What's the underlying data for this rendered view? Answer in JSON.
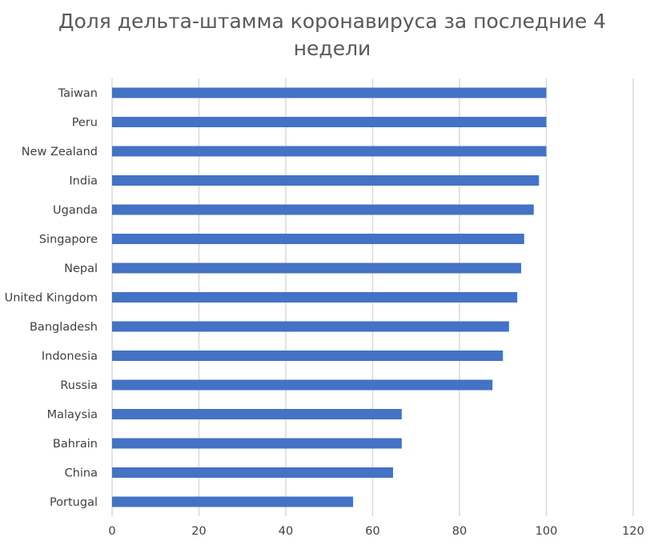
{
  "chart_data": {
    "type": "bar",
    "orientation": "horizontal",
    "title": "Доля дельта-штамма коронавируса за последние 4 недели",
    "xlabel": "",
    "ylabel": "",
    "categories": [
      "Taiwan",
      "Peru",
      "New Zealand",
      "India",
      "Uganda",
      "Singapore",
      "Nepal",
      "United Kingdom",
      "Bangladesh",
      "Indonesia",
      "Russia",
      "Malaysia",
      "Bahrain",
      "China",
      "Portugal"
    ],
    "values": [
      100,
      100,
      100,
      98.3,
      97.1,
      94.9,
      94.2,
      93.3,
      91.4,
      90.0,
      87.6,
      66.7,
      66.7,
      64.7,
      55.5
    ],
    "xlim": [
      0,
      120
    ],
    "xticks": [
      "0",
      "20",
      "40",
      "60",
      "80",
      "100",
      "120"
    ],
    "grid": "vertical",
    "legend": "none",
    "bar_color": "#4472c4",
    "grid_color": "#d9d9d9"
  }
}
